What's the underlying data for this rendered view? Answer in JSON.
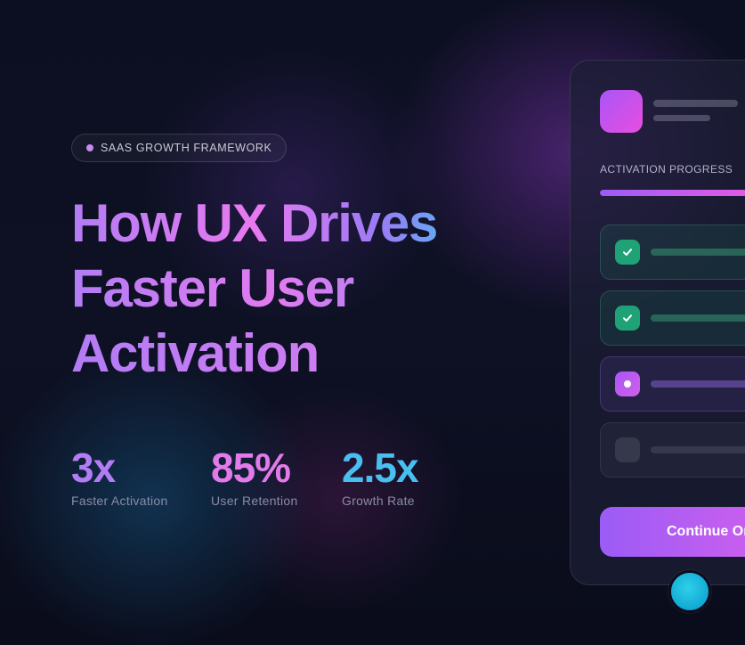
{
  "badge": {
    "label": "SAAS GROWTH FRAMEWORK"
  },
  "headline": {
    "line1": "How UX Drives",
    "line2": "Faster User",
    "line3": "Activation"
  },
  "stats": [
    {
      "value": "3x",
      "label": "Faster Activation",
      "color": "#b37cf5"
    },
    {
      "value": "85%",
      "label": "User Retention",
      "color": "#e27aea"
    },
    {
      "value": "2.5x",
      "label": "Growth Rate",
      "color": "#49bff0"
    }
  ],
  "card": {
    "progress_label": "ACTIVATION PROGRESS",
    "progress_fraction": 0.75,
    "steps": [
      {
        "status": "done",
        "icon": "check-icon"
      },
      {
        "status": "done",
        "icon": "check-icon"
      },
      {
        "status": "active",
        "icon": "dot-icon"
      },
      {
        "status": "pending",
        "icon": "empty-icon"
      }
    ],
    "cta_label": "Continue On"
  },
  "colors": {
    "background": "#0b0d1e",
    "accent_purple": "#9b5cf6",
    "accent_pink": "#e15be6",
    "accent_cyan": "#43c3f0",
    "success_green": "#1fa276"
  }
}
